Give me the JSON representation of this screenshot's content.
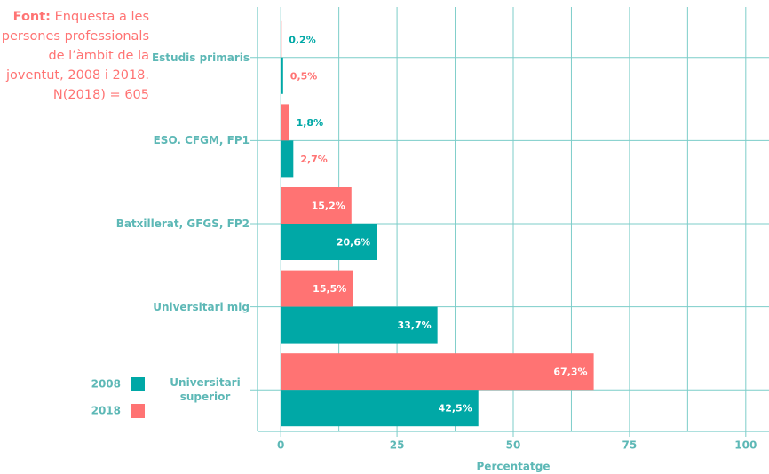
{
  "chart_data": {
    "type": "bar",
    "orientation": "horizontal",
    "source_label": "Font:",
    "source": "Enquesta a les persones professionals de l’àmbit de la joventut, 2008 i 2018. N(2018) = 605",
    "x_label": "Percentatge",
    "categories": [
      "Estudis primaris",
      "ESO. CFGM, FP1",
      "Batxillerat, GFGS, FP2",
      "Universitari mig",
      "Universitari superior"
    ],
    "series": [
      {
        "name": "2018",
        "color": "#ff7373",
        "values": [
          0.2,
          1.8,
          15.2,
          15.5,
          67.3
        ],
        "value_labels": [
          "0,2%",
          "1,8%",
          "15,2%",
          "15,5%",
          "67,3%"
        ]
      },
      {
        "name": "2008",
        "color": "#00a8a6",
        "values": [
          0.5,
          2.7,
          20.6,
          33.7,
          42.5
        ],
        "value_labels": [
          "0,5%",
          "2,7%",
          "20,6%",
          "33,7%",
          "42,5%"
        ]
      }
    ],
    "xlim": [
      -5,
      105
    ],
    "xticks": [
      0,
      25,
      50,
      75,
      100
    ],
    "x_minor_ticks": [
      12.5,
      37.5,
      62.5,
      87.5
    ],
    "grid": true
  }
}
